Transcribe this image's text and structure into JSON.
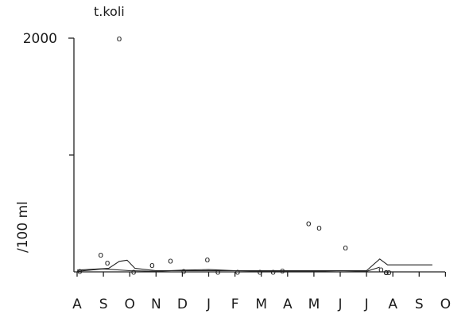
{
  "chart_data": {
    "type": "scatter",
    "title": "t.koli",
    "ylabel": "/100 ml",
    "xlabel": "",
    "ylim": [
      0,
      2000
    ],
    "y_ticks": [
      2000
    ],
    "y_tick_labels": [
      "2000"
    ],
    "y_minor_ticks": [
      1000
    ],
    "months": [
      "A",
      "S",
      "O",
      "N",
      "D",
      "J",
      "F",
      "M",
      "A",
      "M",
      "J",
      "J",
      "A",
      "S",
      "O"
    ],
    "observations": {
      "marker": "o",
      "x": [
        0.1,
        0.9,
        1.15,
        1.6,
        2.15,
        2.85,
        3.55,
        4.05,
        4.95,
        5.35,
        6.1,
        6.95,
        7.45,
        7.8,
        8.8,
        9.2,
        10.2,
        11.55,
        11.75,
        11.75,
        11.75,
        11.85
      ],
      "y": [
        10,
        150,
        80,
        2000,
        5,
        60,
        100,
        10,
        110,
        5,
        5,
        5,
        5,
        15,
        420,
        380,
        210,
        25,
        0,
        0,
        0,
        0
      ]
    },
    "series": [
      {
        "x": [
          0,
          0.8,
          1.2,
          1.6,
          1.9,
          2.2,
          3,
          4,
          5,
          6,
          7,
          8,
          9,
          10,
          11,
          11.5,
          11.8,
          12,
          12.5,
          13,
          13.5
        ],
        "y": [
          15,
          25,
          30,
          90,
          100,
          30,
          10,
          10,
          10,
          10,
          10,
          10,
          10,
          10,
          10,
          110,
          60,
          60,
          60,
          60,
          60
        ]
      },
      {
        "x": [
          0,
          1,
          2,
          3,
          4,
          5,
          6,
          7,
          8,
          9,
          10,
          11,
          11.5
        ],
        "y": [
          5,
          25,
          10,
          5,
          15,
          20,
          10,
          5,
          5,
          5,
          10,
          5,
          40
        ]
      }
    ]
  }
}
